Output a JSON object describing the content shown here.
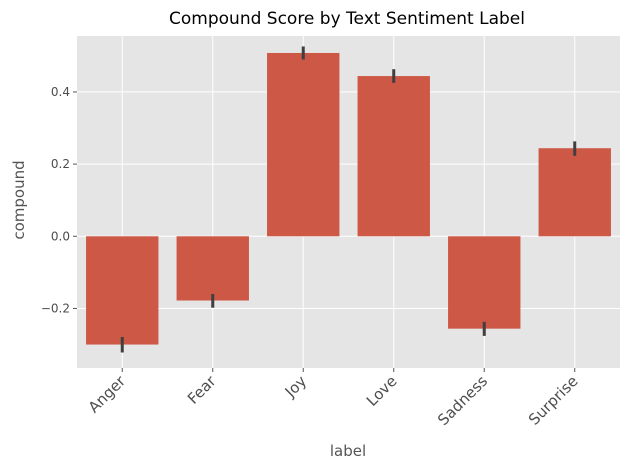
{
  "chart_data": {
    "type": "bar",
    "title": "Compound Score by Text Sentiment Label",
    "xlabel": "label",
    "ylabel": "compound",
    "categories": [
      "Anger",
      "Fear",
      "Joy",
      "Love",
      "Sadness",
      "Surprise"
    ],
    "values": [
      -0.3,
      -0.178,
      0.508,
      0.444,
      -0.256,
      0.244
    ],
    "error_low": [
      -0.322,
      -0.198,
      0.49,
      0.425,
      -0.276,
      0.223
    ],
    "error_high": [
      -0.279,
      -0.16,
      0.526,
      0.463,
      -0.237,
      0.263
    ],
    "yticks": [
      -0.2,
      0.0,
      0.2,
      0.4
    ],
    "ytick_labels": [
      "−0.2",
      "0.0",
      "0.2",
      "0.4"
    ],
    "ylim": [
      -0.365,
      0.555
    ],
    "grid": true,
    "style": "ggplot",
    "colors": {
      "bar": "#cd5845",
      "error_bar": "#3f3f3f",
      "plot_background": "#e5e5e5",
      "grid": "#ffffff"
    }
  }
}
